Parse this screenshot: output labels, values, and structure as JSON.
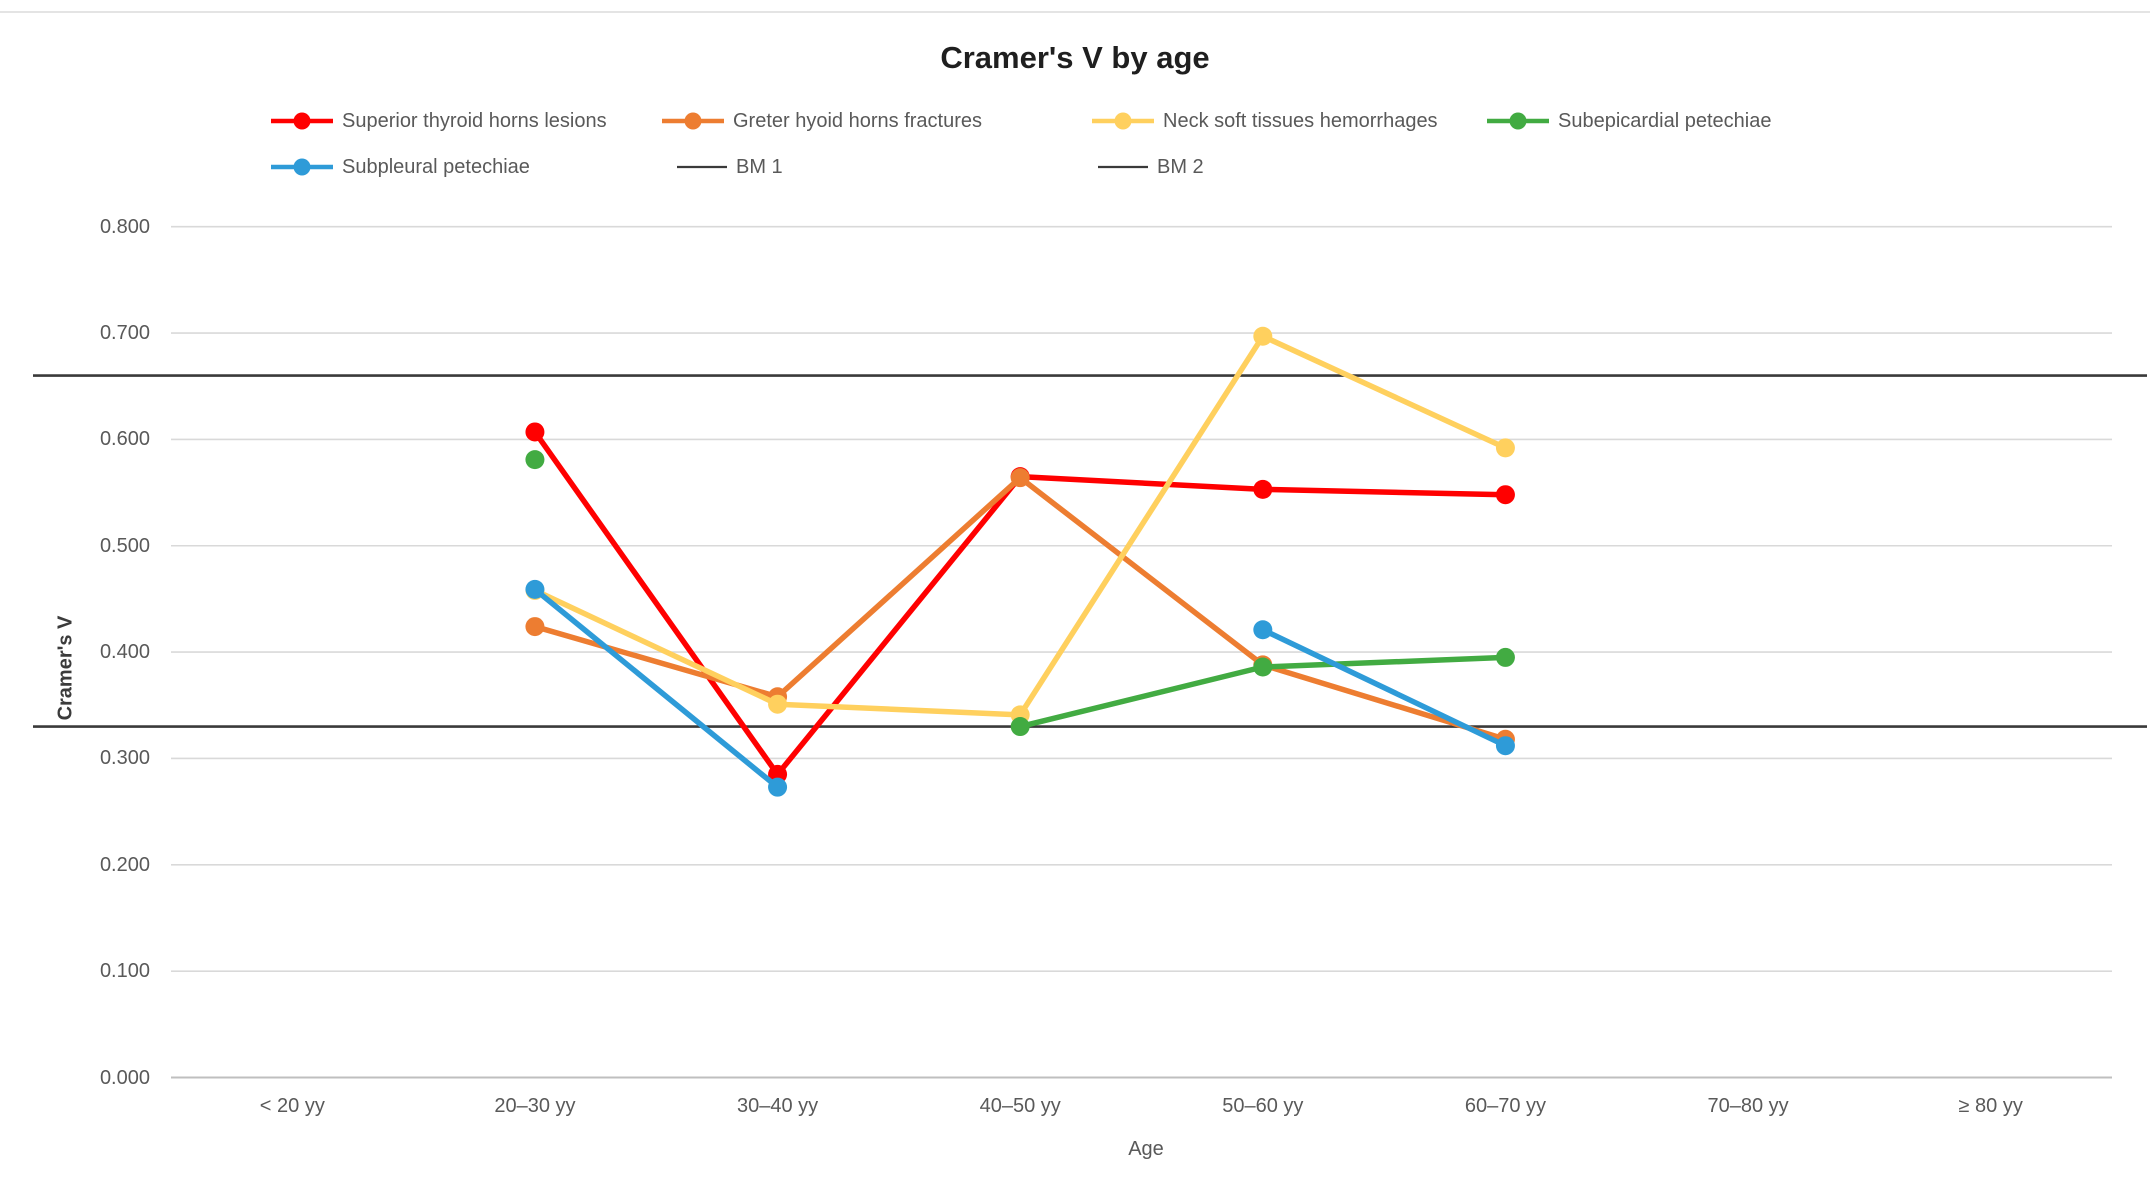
{
  "title": "Cramer's V by age",
  "axes": {
    "ylabel": "Cramer's V",
    "xlabel": "Age",
    "ylim": [
      0,
      0.8
    ],
    "ytick_step": 0.1,
    "y_ticks": [
      "0.000",
      "0.100",
      "0.200",
      "0.300",
      "0.400",
      "0.500",
      "0.600",
      "0.700",
      "0.800"
    ]
  },
  "colors": {
    "gridline": "#d9d9d9",
    "axis_line": "#bfbfbf",
    "benchmark": "#3a3a3a",
    "tick_text": "#595959",
    "title_text": "#1f1f1f"
  },
  "chart_data": {
    "type": "line",
    "title": "Cramer's V by age",
    "xlabel": "Age",
    "ylabel": "Cramer's V",
    "ylim": [
      0,
      0.8
    ],
    "grid": true,
    "legend_position": "top",
    "categories": [
      "< 20 yy",
      "20–30 yy",
      "30–40 yy",
      "40–50 yy",
      "50–60 yy",
      "60–70 yy",
      "70–80 yy",
      "≥ 80 yy"
    ],
    "series": [
      {
        "name": "Superior thyroid horns lesions",
        "color": "#ff0000",
        "values": [
          null,
          0.607,
          0.285,
          0.565,
          0.553,
          0.548,
          null,
          null
        ]
      },
      {
        "name": "Greter hyoid horns fractures",
        "color": "#ed7d31",
        "values": [
          null,
          0.424,
          0.358,
          0.564,
          0.388,
          0.318,
          null,
          null
        ]
      },
      {
        "name": "Neck soft tissues hemorrhages",
        "color": "#ffd05e",
        "values": [
          null,
          0.458,
          0.351,
          0.341,
          0.697,
          0.592,
          null,
          null
        ]
      },
      {
        "name": "Subepicardial petechiae",
        "color": "#42ab42",
        "values": [
          null,
          0.581,
          null,
          0.33,
          0.386,
          0.395,
          null,
          null
        ]
      },
      {
        "name": "Subpleural petechiae",
        "color": "#2e9bd8",
        "values": [
          null,
          0.459,
          0.273,
          null,
          0.421,
          0.312,
          null,
          null
        ]
      }
    ],
    "benchmarks": [
      {
        "name": "BM 1",
        "value": 0.66,
        "color": "#3a3a3a"
      },
      {
        "name": "BM 2",
        "value": 0.33,
        "color": "#3a3a3a"
      }
    ]
  }
}
